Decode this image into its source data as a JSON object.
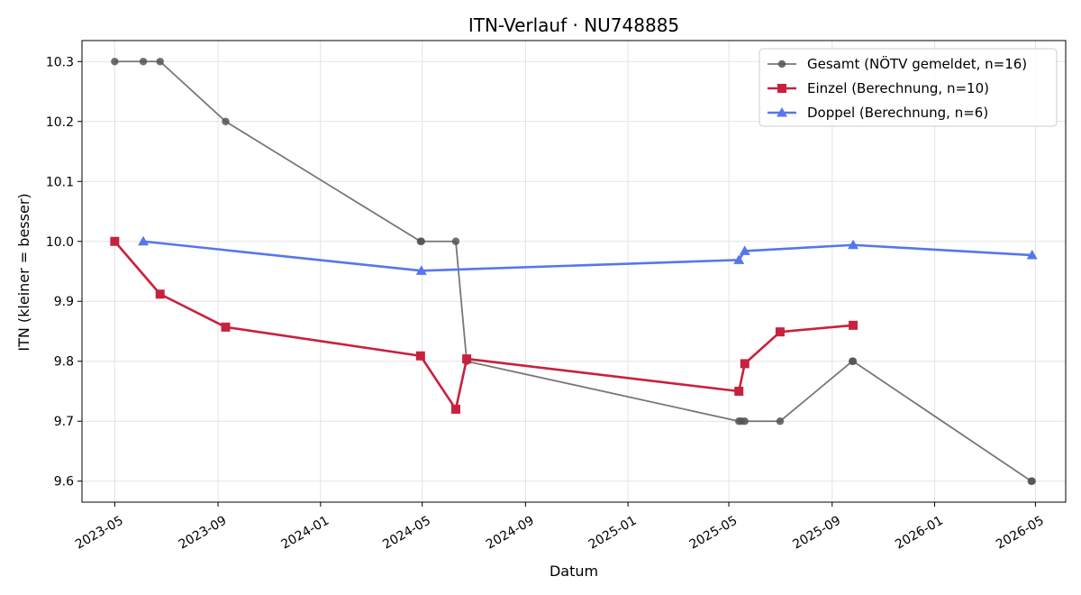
{
  "chart_data": {
    "type": "line",
    "title": "ITN-Verlauf · NU748885",
    "xlabel": "Datum",
    "ylabel": "ITN  (kleiner = besser)",
    "x_ticks": [
      "2023-05",
      "2023-09",
      "2024-01",
      "2024-05",
      "2024-09",
      "2025-01",
      "2025-05",
      "2025-09",
      "2026-01",
      "2026-05"
    ],
    "y_ticks": [
      "9.6",
      "9.7",
      "9.8",
      "9.9",
      "10.0",
      "10.1",
      "10.2",
      "10.3"
    ],
    "xlim": [
      "2023-03-23",
      "2026-06-06"
    ],
    "ylim": [
      9.565,
      10.335
    ],
    "grid": true,
    "legend_position": "top-right",
    "series": [
      {
        "name": "Gesamt (NÖTV gemeldet, n=16)",
        "color": "#555555",
        "marker": "circle",
        "points": [
          {
            "x": "2023-05-01",
            "y": 10.3
          },
          {
            "x": "2023-06-04",
            "y": 10.3
          },
          {
            "x": "2023-06-24",
            "y": 10.3
          },
          {
            "x": "2023-09-10",
            "y": 10.2
          },
          {
            "x": "2024-04-29",
            "y": 10.0
          },
          {
            "x": "2024-04-30",
            "y": 10.0
          },
          {
            "x": "2024-06-10",
            "y": 10.0
          },
          {
            "x": "2024-06-23",
            "y": 9.8
          },
          {
            "x": "2025-05-13",
            "y": 9.7
          },
          {
            "x": "2025-05-16",
            "y": 9.7
          },
          {
            "x": "2025-05-20",
            "y": 9.7
          },
          {
            "x": "2025-07-01",
            "y": 9.7
          },
          {
            "x": "2025-09-25",
            "y": 9.8
          },
          {
            "x": "2025-09-26",
            "y": 9.8
          },
          {
            "x": "2026-04-26",
            "y": 9.6
          },
          {
            "x": "2026-04-27",
            "y": 9.6
          }
        ]
      },
      {
        "name": "Einzel (Berechnung, n=10)",
        "color": "#c8213e",
        "marker": "square",
        "points": [
          {
            "x": "2023-05-01",
            "y": 10.0
          },
          {
            "x": "2023-06-24",
            "y": 9.912
          },
          {
            "x": "2023-09-10",
            "y": 9.857
          },
          {
            "x": "2024-04-29",
            "y": 9.809
          },
          {
            "x": "2024-06-10",
            "y": 9.72
          },
          {
            "x": "2024-06-23",
            "y": 9.804
          },
          {
            "x": "2025-05-13",
            "y": 9.75
          },
          {
            "x": "2025-05-20",
            "y": 9.796
          },
          {
            "x": "2025-07-01",
            "y": 9.849
          },
          {
            "x": "2025-09-26",
            "y": 9.86
          }
        ]
      },
      {
        "name": "Doppel (Berechnung, n=6)",
        "color": "#5577ee",
        "marker": "triangle",
        "points": [
          {
            "x": "2023-06-04",
            "y": 10.0
          },
          {
            "x": "2024-04-30",
            "y": 9.951
          },
          {
            "x": "2025-05-13",
            "y": 9.969
          },
          {
            "x": "2025-05-20",
            "y": 9.984
          },
          {
            "x": "2025-09-26",
            "y": 9.994
          },
          {
            "x": "2026-04-27",
            "y": 9.977
          }
        ]
      }
    ]
  }
}
